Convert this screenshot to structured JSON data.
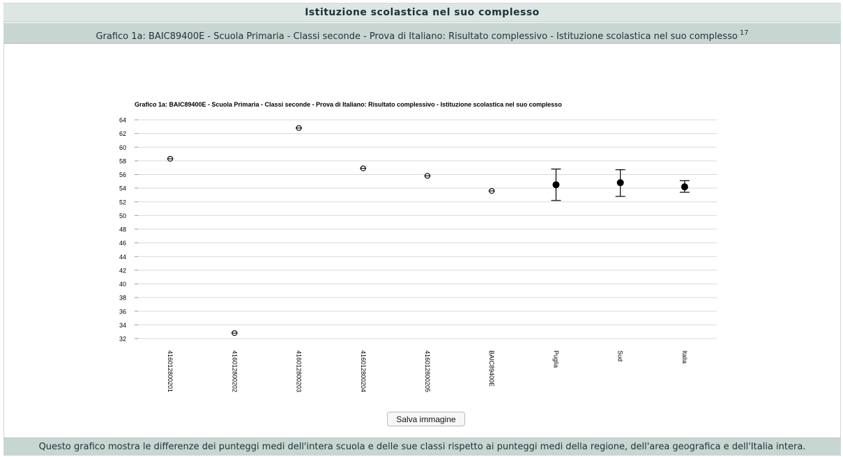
{
  "header": {
    "title": "Istituzione scolastica nel suo complesso",
    "subtitle": "Grafico 1a: BAIC89400E - Scuola Primaria - Classi seconde - Prova di Italiano: Risultato complessivo - Istituzione scolastica nel suo complesso",
    "footnote_marker": "17"
  },
  "footer": {
    "text": "Questo grafico mostra le differenze dei punteggi medi dell'intera scuola e delle sue classi rispetto ai punteggi medi della regione, dell'area geografica e dell'Italia intera."
  },
  "save_button_label": "Salva immagine",
  "chart_data": {
    "type": "scatter",
    "title": "Grafico 1a: BAIC89400E - Scuola Primaria - Classi seconde - Prova di Italiano: Risultato complessivo - Istituzione scolastica nel suo complesso",
    "xlabel": "",
    "ylabel": "",
    "ylim": [
      32,
      64
    ],
    "ytick_step": 2,
    "grid": true,
    "categories": [
      "416012800201",
      "416012800202",
      "416012800203",
      "416012800204",
      "416012800205",
      "BAIC89400E",
      "Puglia",
      "Sud",
      "Italia"
    ],
    "values": [
      58.3,
      32.8,
      62.8,
      56.9,
      55.8,
      53.6,
      54.5,
      54.8,
      54.2
    ],
    "error_low": [
      null,
      null,
      null,
      null,
      null,
      null,
      52.2,
      52.8,
      53.4
    ],
    "error_high": [
      null,
      null,
      null,
      null,
      null,
      null,
      56.8,
      56.7,
      55.1
    ],
    "marker_styles": [
      "open",
      "open",
      "open",
      "open",
      "open",
      "open",
      "filled",
      "filled",
      "filled"
    ],
    "colors": {
      "grid": "#d9d9d9",
      "marker": "#000000"
    }
  }
}
